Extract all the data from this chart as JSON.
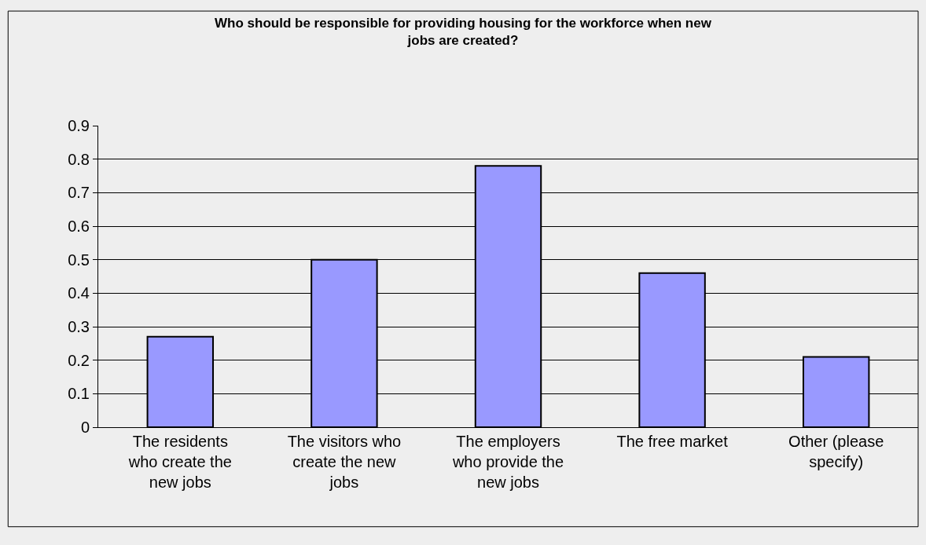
{
  "chart_data": {
    "type": "bar",
    "title": "Who should be responsible for providing housing for the workforce when new\njobs are created?",
    "categories": [
      "The residents\nwho create the\nnew jobs",
      "The visitors who\ncreate the new\njobs",
      "The employers\nwho provide the\nnew jobs",
      "The free market",
      "Other (please\nspecify)"
    ],
    "values": [
      0.27,
      0.5,
      0.78,
      0.46,
      0.21
    ],
    "color": "#9999ff",
    "ylim": [
      0,
      0.9
    ],
    "yticks": [
      0,
      0.1,
      0.2,
      0.3,
      0.4,
      0.5,
      0.6,
      0.7,
      0.8,
      0.9
    ],
    "grid": "y"
  }
}
